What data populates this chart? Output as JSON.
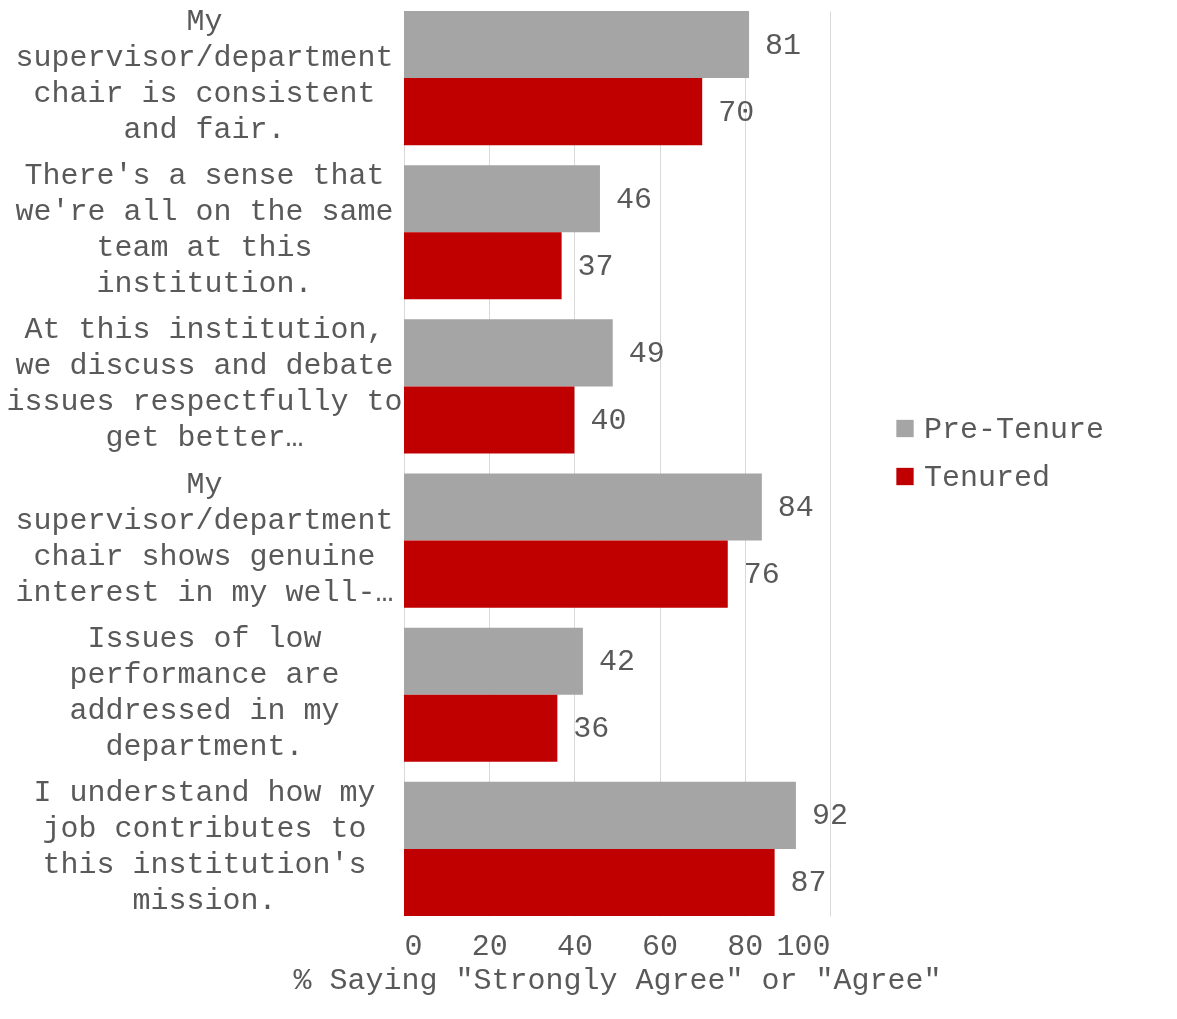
{
  "chart_data": {
    "type": "bar",
    "orientation": "horizontal",
    "xlabel": "% Saying \"Strongly Agree\" or \"Agree\"",
    "categories": [
      "My supervisor/department chair is consistent and fair.",
      "There's a sense that we're all on the same team at this institution.",
      "At this institution, we discuss and debate issues respectfully to get better…",
      "My supervisor/department chair shows genuine interest in my well-…",
      "Issues of low performance are addressed in my department.",
      "I understand how my job contributes to this institution's mission."
    ],
    "series": [
      {
        "name": "Pre-Tenure",
        "color": "#a5a5a5",
        "values": [
          81,
          46,
          49,
          84,
          42,
          92
        ]
      },
      {
        "name": "Tenured",
        "color": "#c00000",
        "values": [
          70,
          37,
          40,
          76,
          36,
          87
        ]
      }
    ],
    "xlim": [
      0,
      100
    ],
    "xticks": [
      0,
      20,
      40,
      60,
      80,
      100
    ],
    "grid": "x",
    "legend": "right",
    "data_labels": true
  }
}
